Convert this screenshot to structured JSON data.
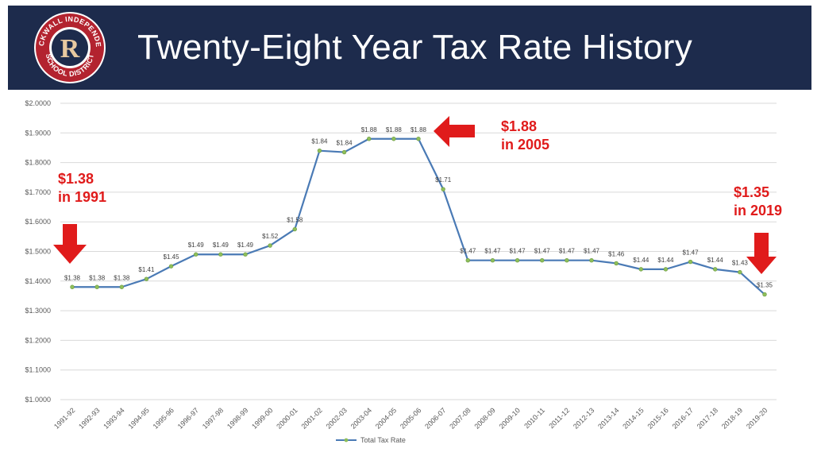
{
  "header": {
    "title": "Twenty-Eight Year Tax Rate History",
    "logo_text_top": "ROCKWALL INDEPENDENT",
    "logo_text_bottom": "SCHOOL DISTRICT",
    "logo_letter": "R",
    "bg_color": "#1d2b4c"
  },
  "annotations": [
    {
      "value": "$1.38",
      "year": "in 1991"
    },
    {
      "value": "$1.88",
      "year": "in 2005"
    },
    {
      "value": "$1.35",
      "year": "in 2019"
    }
  ],
  "chart_data": {
    "type": "line",
    "categories": [
      "1991-92",
      "1992-93",
      "1993-94",
      "1994-95",
      "1995-96",
      "1996-97",
      "1997-98",
      "1998-99",
      "1999-00",
      "2000-01",
      "2001-02",
      "2002-03",
      "2003-04",
      "2004-05",
      "2005-06",
      "2006-07",
      "2007-08",
      "2008-09",
      "2009-10",
      "2010-11",
      "2011-12",
      "2012-13",
      "2013-14",
      "2014-15",
      "2015-16",
      "2016-17",
      "2017-18",
      "2018-19",
      "2019-20"
    ],
    "series": [
      {
        "name": "Total Tax Rate",
        "color": "#4a7ab5",
        "marker_color": "#8fbf5a",
        "values": [
          1.38,
          1.38,
          1.38,
          1.407,
          1.45,
          1.49,
          1.49,
          1.49,
          1.52,
          1.575,
          1.84,
          1.835,
          1.88,
          1.88,
          1.88,
          1.71,
          1.47,
          1.47,
          1.47,
          1.47,
          1.47,
          1.47,
          1.46,
          1.44,
          1.44,
          1.465,
          1.44,
          1.43,
          1.355
        ],
        "labels": [
          "$1.38",
          "$1.38",
          "$1.38",
          "$1.41",
          "$1.45",
          "$1.49",
          "$1.49",
          "$1.49",
          "$1.52",
          "$1.58",
          "$1.84",
          "$1.84",
          "$1.88",
          "$1.88",
          "$1.88",
          "$1.71",
          "$1.47",
          "$1.47",
          "$1.47",
          "$1.47",
          "$1.47",
          "$1.47",
          "$1.46",
          "$1.44",
          "$1.44",
          "$1.47",
          "$1.44",
          "$1.43",
          "$1.35"
        ]
      }
    ],
    "yticks": [
      "$1.0000",
      "$1.1000",
      "$1.2000",
      "$1.3000",
      "$1.4000",
      "$1.5000",
      "$1.6000",
      "$1.7000",
      "$1.8000",
      "$1.9000",
      "$2.0000"
    ],
    "ylim": [
      1.0,
      2.0
    ],
    "grid": true,
    "legend": "bottom-center",
    "title": "",
    "xlabel": "",
    "ylabel": "",
    "arrow_color": "#e01b1b"
  }
}
